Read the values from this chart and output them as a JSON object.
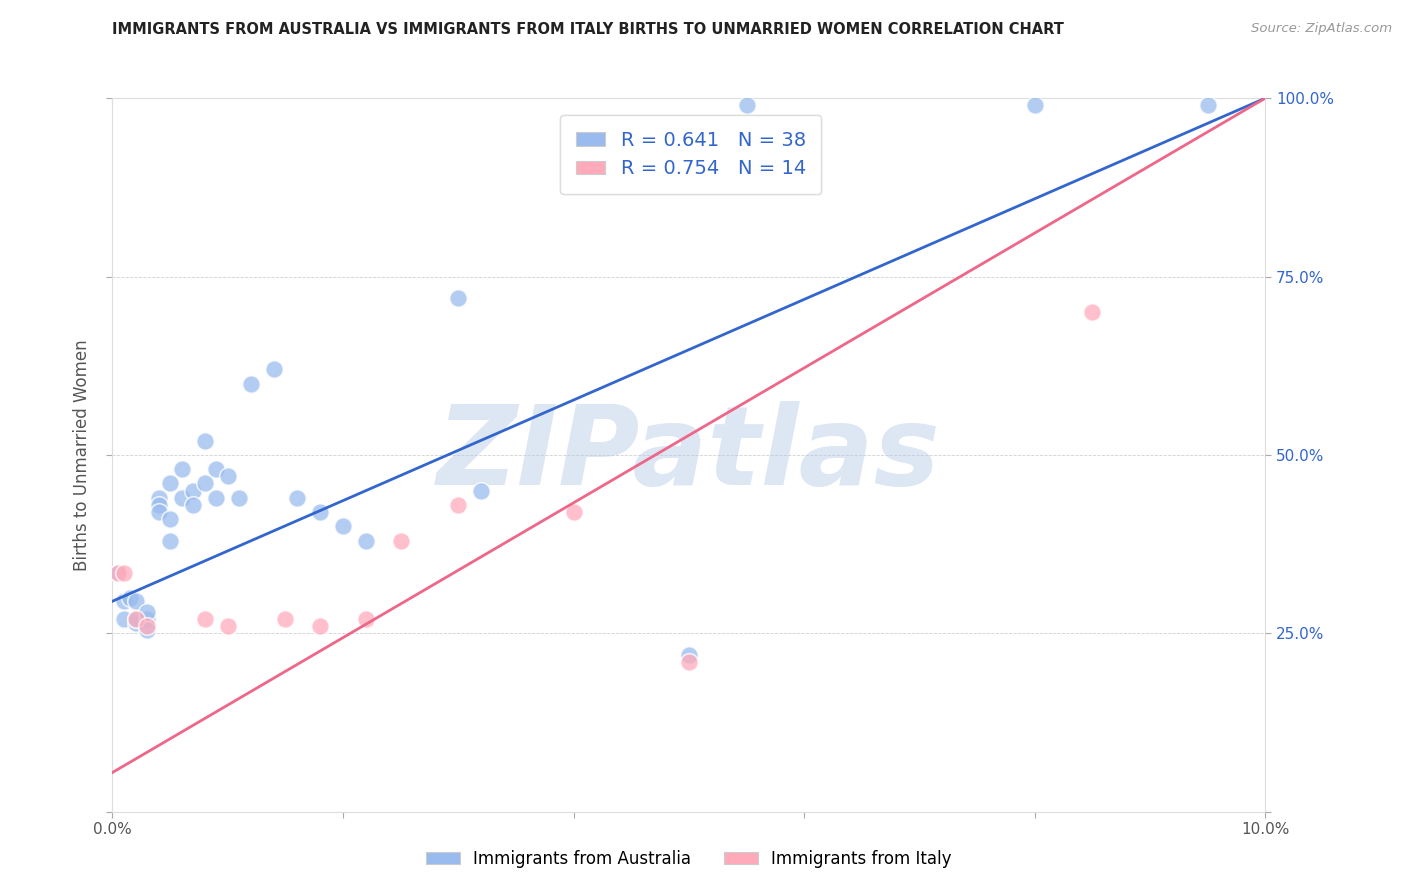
{
  "title": "IMMIGRANTS FROM AUSTRALIA VS IMMIGRANTS FROM ITALY BIRTHS TO UNMARRIED WOMEN CORRELATION CHART",
  "source": "Source: ZipAtlas.com",
  "ylabel": "Births to Unmarried Women",
  "legend_label_1": "Immigrants from Australia",
  "legend_label_2": "Immigrants from Italy",
  "R1": 0.641,
  "N1": 38,
  "R2": 0.754,
  "N2": 14,
  "xlim": [
    0.0,
    0.1
  ],
  "ylim": [
    0.0,
    1.0
  ],
  "color_blue": "#99BBEE",
  "color_pink": "#FFAABB",
  "color_blue_line": "#3366CC",
  "color_pink_line": "#EE6688",
  "watermark": "ZIPatlas",
  "watermark_color_r": 180,
  "watermark_color_g": 200,
  "watermark_color_b": 230,
  "background_color": "#FFFFFF",
  "aus_x": [
    0.0005,
    0.001,
    0.001,
    0.0015,
    0.002,
    0.002,
    0.002,
    0.003,
    0.003,
    0.003,
    0.004,
    0.004,
    0.004,
    0.005,
    0.005,
    0.005,
    0.006,
    0.006,
    0.007,
    0.007,
    0.008,
    0.008,
    0.009,
    0.009,
    0.01,
    0.011,
    0.012,
    0.014,
    0.016,
    0.018,
    0.02,
    0.022,
    0.03,
    0.032,
    0.05,
    0.055,
    0.08,
    0.095
  ],
  "aus_y": [
    0.335,
    0.295,
    0.27,
    0.3,
    0.265,
    0.27,
    0.295,
    0.27,
    0.255,
    0.28,
    0.44,
    0.43,
    0.42,
    0.46,
    0.41,
    0.38,
    0.48,
    0.44,
    0.45,
    0.43,
    0.52,
    0.46,
    0.44,
    0.48,
    0.47,
    0.44,
    0.6,
    0.62,
    0.44,
    0.42,
    0.4,
    0.38,
    0.72,
    0.45,
    0.22,
    0.99,
    0.99,
    0.99
  ],
  "ita_x": [
    0.0005,
    0.001,
    0.002,
    0.003,
    0.008,
    0.01,
    0.015,
    0.018,
    0.022,
    0.025,
    0.03,
    0.04,
    0.05,
    0.085
  ],
  "ita_y": [
    0.335,
    0.335,
    0.27,
    0.26,
    0.27,
    0.26,
    0.27,
    0.26,
    0.27,
    0.38,
    0.43,
    0.42,
    0.21,
    0.7
  ],
  "aus_line_x": [
    0.0,
    0.1
  ],
  "aus_line_y": [
    0.295,
    1.0
  ],
  "ita_line_x": [
    0.0,
    0.1
  ],
  "ita_line_y": [
    0.055,
    1.0
  ]
}
